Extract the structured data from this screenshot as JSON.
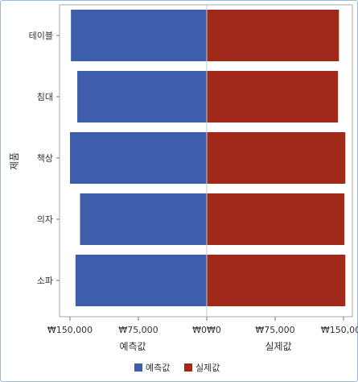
{
  "chart_data": {
    "type": "bar",
    "orientation": "horizontal-butterfly",
    "categories": [
      "테이블",
      "침대",
      "책상",
      "의자",
      "소파"
    ],
    "series": [
      {
        "name": "예측값",
        "color": "#3d5dad",
        "values": [
          149000,
          142000,
          150000,
          139000,
          144000
        ]
      },
      {
        "name": "실제값",
        "color": "#a0291a",
        "values": [
          145000,
          144000,
          152000,
          151000,
          152000
        ]
      }
    ],
    "ylabel": "제품",
    "xlabel_left": "예측값",
    "xlabel_right": "실제값",
    "xlim": [
      0,
      150000
    ],
    "left_ticks": [
      "₩150,000",
      "₩75,000",
      "₩0"
    ],
    "right_ticks": [
      "₩0",
      "₩75,000",
      "₩150,000"
    ],
    "legend": [
      "예측값",
      "실제값"
    ],
    "legend_position": "bottom",
    "grid": false
  }
}
